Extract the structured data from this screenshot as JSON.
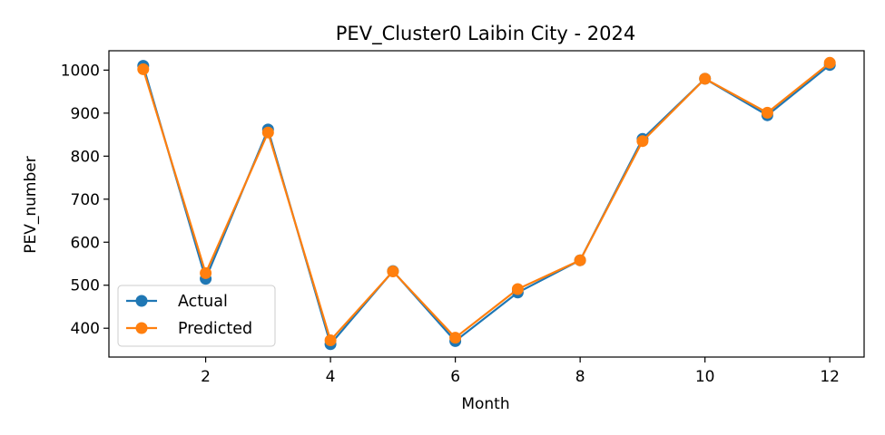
{
  "chart_data": {
    "type": "line",
    "title": "PEV_Cluster0 Laibin City - 2024",
    "xlabel": "Month",
    "ylabel": "PEV_number",
    "x": [
      1,
      2,
      3,
      4,
      5,
      6,
      7,
      8,
      9,
      10,
      11,
      12
    ],
    "xlim": [
      0.45,
      12.55
    ],
    "ylim": [
      333,
      1045
    ],
    "xticks": [
      2,
      4,
      6,
      8,
      10,
      12
    ],
    "yticks": [
      400,
      500,
      600,
      700,
      800,
      900,
      1000
    ],
    "grid": false,
    "legend_position": "lower-left",
    "series": [
      {
        "name": "Actual",
        "color": "#1f77b4",
        "values": [
          1010,
          515,
          862,
          363,
          533,
          370,
          483,
          558,
          840,
          980,
          895,
          1012
        ]
      },
      {
        "name": "Predicted",
        "color": "#ff7f0e",
        "values": [
          1002,
          528,
          855,
          372,
          532,
          378,
          491,
          558,
          835,
          980,
          901,
          1017
        ]
      }
    ]
  }
}
